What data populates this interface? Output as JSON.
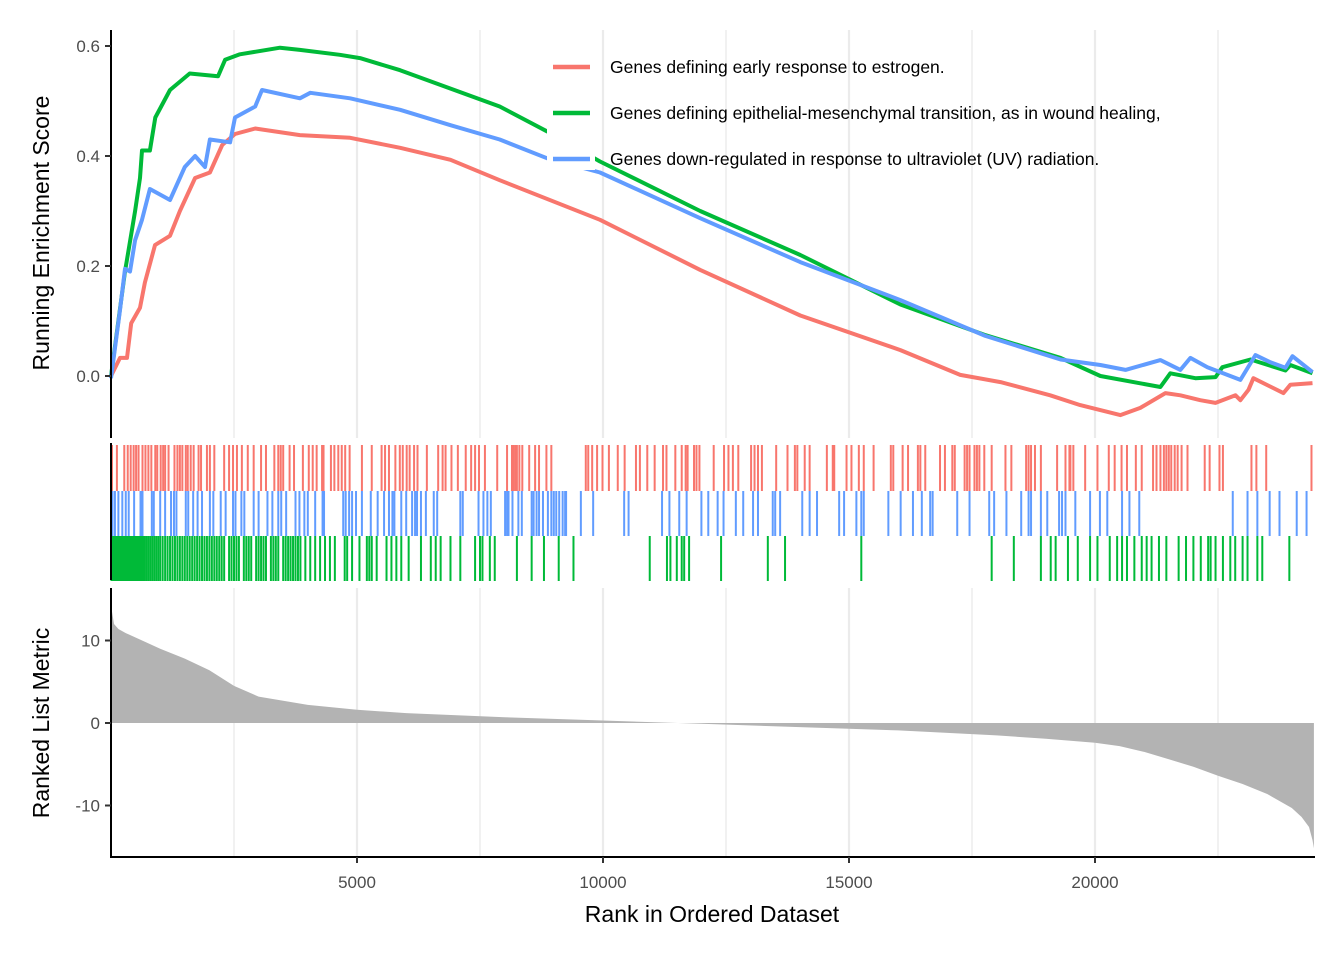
{
  "chart_data": [
    {
      "type": "line",
      "panel": "running-enrichment-score",
      "ylabel": "Running Enrichment Score",
      "ylim": [
        -0.1,
        0.62
      ],
      "yticks": [
        0.0,
        0.2,
        0.4,
        0.6
      ],
      "ytick_labels": [
        "0.0",
        "0.2",
        "0.4",
        "0.6"
      ],
      "xlim": [
        0,
        24450
      ],
      "grid": "vertical-major-and-minor",
      "legend": {
        "placement": "top-right",
        "entries": [
          {
            "label": "Genes defining early response to estrogen.",
            "color": "#F8766D"
          },
          {
            "label": "Genes defining epithelial-mesenchymal transition, as in wound healing,",
            "color": "#00BA38"
          },
          {
            "label": "Genes down-regulated in response to ultraviolet (UV) radiation.",
            "color": "#619CFF"
          }
        ]
      },
      "series": [
        {
          "name": "Genes defining early response to estrogen.",
          "color": "#F8766D",
          "x": [
            0,
            183,
            325,
            410,
            590,
            690,
            895,
            1200,
            1400,
            1710,
            2010,
            2260,
            2520,
            2930,
            3840,
            4860,
            5875,
            6900,
            7900,
            9940,
            11975,
            14010,
            16045,
            17260,
            18080,
            19090,
            19700,
            20515,
            20920,
            21430,
            21735,
            22140,
            22450,
            22855,
            22955,
            23120,
            23220,
            23830,
            23970,
            24420
          ],
          "y": [
            0,
            0.033,
            0.033,
            0.096,
            0.124,
            0.17,
            0.238,
            0.255,
            0.3,
            0.36,
            0.37,
            0.42,
            0.44,
            0.45,
            0.438,
            0.433,
            0.415,
            0.393,
            0.356,
            0.284,
            0.193,
            0.11,
            0.047,
            0.002,
            -0.011,
            -0.035,
            -0.053,
            -0.071,
            -0.058,
            -0.031,
            -0.035,
            -0.044,
            -0.049,
            -0.035,
            -0.044,
            -0.025,
            -0.004,
            -0.031,
            -0.016,
            -0.013
          ]
        },
        {
          "name": "Genes defining epithelial-mesenchymal transition, as in wound healing,",
          "color": "#00BA38",
          "x": [
            0,
            285,
            490,
            590,
            630,
            790,
            900,
            1200,
            1600,
            2175,
            2320,
            2620,
            3435,
            3840,
            4650,
            5060,
            5875,
            7900,
            8860,
            9940,
            11975,
            14010,
            16045,
            17750,
            19300,
            20110,
            21330,
            21530,
            22040,
            22450,
            22590,
            23160,
            23870,
            23970,
            24420
          ],
          "y": [
            0,
            0.19,
            0.3,
            0.36,
            0.41,
            0.41,
            0.47,
            0.52,
            0.55,
            0.545,
            0.575,
            0.585,
            0.597,
            0.593,
            0.584,
            0.578,
            0.556,
            0.49,
            0.445,
            0.39,
            0.3,
            0.22,
            0.13,
            0.075,
            0.033,
            0.0,
            -0.02,
            0.005,
            -0.004,
            -0.002,
            0.016,
            0.03,
            0.01,
            0.02,
            0.005
          ]
        },
        {
          "name": "Genes down-regulated in response to ultraviolet (UV) radiation.",
          "color": "#619CFF",
          "x": [
            0,
            183,
            285,
            386,
            490,
            630,
            790,
            1200,
            1500,
            1710,
            1910,
            2010,
            2420,
            2520,
            2930,
            3070,
            3840,
            4050,
            4860,
            5875,
            6900,
            7900,
            8860,
            9940,
            11975,
            14010,
            16045,
            17770,
            19300,
            20110,
            20620,
            21330,
            21735,
            21940,
            22285,
            22955,
            23260,
            23565,
            23870,
            24015,
            24420
          ],
          "y": [
            -0.004,
            0.12,
            0.195,
            0.19,
            0.247,
            0.284,
            0.34,
            0.32,
            0.38,
            0.4,
            0.38,
            0.43,
            0.425,
            0.47,
            0.49,
            0.52,
            0.505,
            0.515,
            0.505,
            0.484,
            0.456,
            0.43,
            0.396,
            0.37,
            0.287,
            0.207,
            0.138,
            0.073,
            0.03,
            0.02,
            0.011,
            0.029,
            0.011,
            0.033,
            0.016,
            -0.007,
            0.038,
            0.025,
            0.015,
            0.036,
            0.007
          ]
        }
      ]
    },
    {
      "type": "rug",
      "panel": "gene-set-hits",
      "xlim": [
        0,
        24450
      ],
      "rows": [
        {
          "name": "Genes defining early response to estrogen.",
          "color": "#F8766D",
          "hits": [
            20,
            120,
            270,
            340,
            400,
            460,
            510,
            560,
            640,
            700,
            760,
            820,
            900,
            940,
            1010,
            1060,
            1100,
            1170,
            1290,
            1350,
            1400,
            1450,
            1520,
            1560,
            1620,
            1680,
            1780,
            1830,
            1950,
            2010,
            2100,
            2300,
            2400,
            2480,
            2560,
            2660,
            2780,
            2900,
            3050,
            3150,
            3320,
            3400,
            3450,
            3500,
            3630,
            3720,
            3900,
            4020,
            4100,
            4180,
            4290,
            4320,
            4470,
            4540,
            4620,
            4690,
            4760,
            4850,
            5100,
            5300,
            5500,
            5570,
            5650,
            5780,
            5870,
            5930,
            6010,
            6070,
            6160,
            6230,
            6420,
            6650,
            6740,
            6800,
            6920,
            7050,
            7210,
            7320,
            7400,
            7480,
            7600,
            7850,
            8050,
            8150,
            8180,
            8220,
            8250,
            8300,
            8360,
            8500,
            8620,
            8700,
            8850,
            8950,
            9650,
            9700,
            9780,
            9880,
            9990,
            10120,
            10300,
            10440,
            10670,
            10750,
            10900,
            11050,
            11220,
            11290,
            11470,
            11600,
            11680,
            11720,
            11850,
            11900,
            11960,
            12250,
            12460,
            12550,
            12640,
            12750,
            13010,
            13080,
            13150,
            13230,
            13520,
            13750,
            13900,
            13950,
            14100,
            14200,
            14550,
            14670,
            14700,
            14950,
            15050,
            15200,
            15300,
            15500,
            15850,
            15900,
            16090,
            16200,
            16400,
            16450,
            16550,
            16850,
            16950,
            17100,
            17150,
            17350,
            17400,
            17450,
            17550,
            17600,
            17650,
            17750,
            17900,
            18180,
            18300,
            18600,
            18650,
            18700,
            18780,
            18900,
            19230,
            19400,
            19480,
            19500,
            19560,
            19800,
            20050,
            20280,
            20400,
            20540,
            20650,
            20830,
            20950,
            21180,
            21250,
            21330,
            21400,
            21450,
            21500,
            21550,
            21620,
            21680,
            21760,
            21880,
            22230,
            22330,
            22530,
            22600,
            23180,
            23280,
            23480,
            24400
          ]
        },
        {
          "name": "Genes down-regulated in response to ultraviolet (UV) radiation.",
          "color": "#619CFF",
          "hits": [
            30,
            80,
            150,
            230,
            300,
            360,
            470,
            600,
            640,
            830,
            870,
            1000,
            1100,
            1220,
            1280,
            1330,
            1520,
            1570,
            1670,
            1760,
            1850,
            2010,
            2080,
            2230,
            2330,
            2480,
            2530,
            2650,
            2710,
            2900,
            3000,
            3180,
            3280,
            3400,
            3460,
            3560,
            3750,
            3830,
            3930,
            4000,
            4150,
            4300,
            4330,
            4720,
            4770,
            4840,
            4900,
            4980,
            5100,
            5280,
            5420,
            5550,
            5650,
            5720,
            5760,
            5900,
            6000,
            6120,
            6180,
            6220,
            6300,
            6400,
            6560,
            6630,
            7100,
            7150,
            7470,
            7570,
            7650,
            7720,
            8010,
            8050,
            8080,
            8160,
            8280,
            8350,
            8550,
            8590,
            8650,
            8700,
            8780,
            8880,
            8950,
            9000,
            9050,
            9110,
            9180,
            9230,
            9250,
            9550,
            9800,
            10430,
            10520,
            11200,
            11350,
            11550,
            11700,
            12000,
            12140,
            12330,
            12450,
            12700,
            12850,
            13050,
            13150,
            13450,
            13500,
            13600,
            14050,
            14200,
            14350,
            14800,
            14900,
            15150,
            15250,
            15300,
            15800,
            16050,
            16300,
            16480,
            16650,
            16700,
            17200,
            17450,
            17850,
            17950,
            18200,
            18500,
            18650,
            18700,
            18900,
            19030,
            19270,
            19330,
            19400,
            19600,
            19900,
            20100,
            20250,
            20550,
            20700,
            20900,
            22800,
            23100,
            23300,
            23550,
            23750,
            24100,
            24300
          ]
        },
        {
          "name": "Genes defining epithelial-mesenchymal transition, as in wound healing,",
          "color": "#00BA38",
          "hits": [
            10,
            40,
            70,
            100,
            130,
            160,
            190,
            220,
            250,
            280,
            310,
            340,
            370,
            400,
            430,
            460,
            490,
            520,
            550,
            580,
            610,
            640,
            680,
            720,
            760,
            800,
            840,
            880,
            920,
            960,
            1000,
            1050,
            1100,
            1150,
            1200,
            1250,
            1300,
            1350,
            1400,
            1450,
            1500,
            1550,
            1600,
            1650,
            1700,
            1750,
            1800,
            1850,
            1900,
            1950,
            2000,
            2050,
            2100,
            2150,
            2200,
            2250,
            2300,
            2400,
            2450,
            2500,
            2550,
            2600,
            2700,
            2750,
            2800,
            2850,
            2950,
            3000,
            3050,
            3100,
            3150,
            3250,
            3300,
            3350,
            3400,
            3500,
            3550,
            3600,
            3650,
            3700,
            3750,
            3800,
            3850,
            3950,
            4050,
            4150,
            4250,
            4350,
            4450,
            4550,
            4750,
            4800,
            4900,
            5050,
            5200,
            5250,
            5300,
            5400,
            5600,
            5700,
            5800,
            5900,
            6050,
            6300,
            6500,
            6600,
            6700,
            6900,
            7100,
            7400,
            7500,
            7550,
            7700,
            7800,
            8250,
            8550,
            8800,
            9100,
            9400,
            10950,
            11300,
            11370,
            11500,
            11600,
            11650,
            11750,
            12400,
            13350,
            13700,
            15250,
            17900,
            18350,
            18900,
            19100,
            19200,
            19450,
            19650,
            19900,
            20050,
            20300,
            20450,
            20550,
            20650,
            20800,
            20950,
            21050,
            21150,
            21300,
            21450,
            21700,
            21850,
            22000,
            22150,
            22300,
            22350,
            22450,
            22600,
            22750,
            22850,
            23000,
            23100,
            23300,
            23400,
            23950
          ]
        }
      ]
    },
    {
      "type": "area",
      "panel": "ranked-list-metric",
      "ylabel": "Ranked List Metric",
      "xlabel": "Rank in Ordered Dataset",
      "ylim": [
        -15.8,
        16
      ],
      "yticks": [
        -10,
        0,
        10
      ],
      "ytick_labels": [
        "-10",
        "0",
        "10"
      ],
      "xticks": [
        5000,
        10000,
        15000,
        20000
      ],
      "xtick_labels": [
        "5000",
        "10000",
        "15000",
        "20000"
      ],
      "xlim": [
        0,
        24450
      ],
      "fill_color": "#B3B3B3",
      "x": [
        0,
        20,
        60,
        150,
        300,
        600,
        1000,
        1500,
        2000,
        2500,
        3000,
        4000,
        5000,
        6000,
        8000,
        10000,
        12000,
        14000,
        16000,
        17000,
        18000,
        19000,
        20000,
        20500,
        21000,
        21500,
        22000,
        22500,
        23000,
        23500,
        24000,
        24200,
        24350,
        24420,
        24450
      ],
      "y": [
        16,
        13.5,
        12,
        11.4,
        10.9,
        10.1,
        9.0,
        7.8,
        6.4,
        4.5,
        3.2,
        2.2,
        1.6,
        1.2,
        0.7,
        0.3,
        -0.1,
        -0.5,
        -0.9,
        -1.2,
        -1.5,
        -1.9,
        -2.4,
        -2.8,
        -3.5,
        -4.4,
        -5.3,
        -6.4,
        -7.4,
        -8.6,
        -10.3,
        -11.4,
        -12.6,
        -14.2,
        -15.2
      ]
    }
  ]
}
